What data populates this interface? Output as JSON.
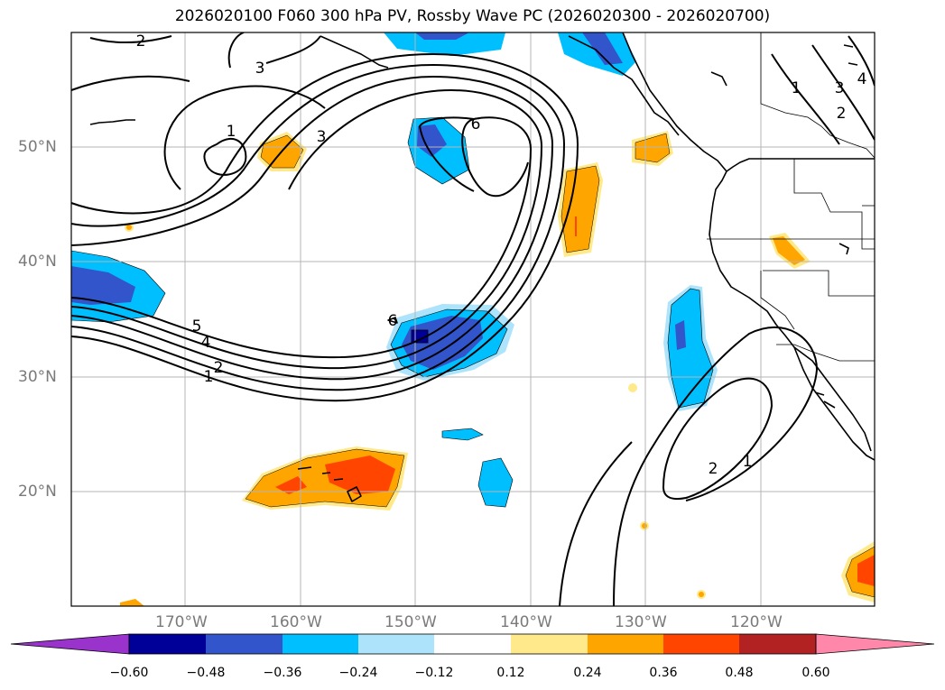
{
  "title": "2026020100 F060 300 hPa PV, Rossby Wave PC (2026020300 - 2026020700)",
  "lat_labels": [
    "50°N",
    "40°N",
    "30°N",
    "20°N"
  ],
  "lon_labels": [
    "170°W",
    "160°W",
    "150°W",
    "140°W",
    "130°W",
    "120°W"
  ],
  "contour_labels": [
    "1",
    "2",
    "3",
    "4",
    "5",
    "6"
  ],
  "colorbar": {
    "ticks": [
      "−0.60",
      "−0.48",
      "−0.36",
      "−0.24",
      "−0.12",
      "0.12",
      "0.24",
      "0.36",
      "0.48",
      "0.60"
    ],
    "colors": [
      "#9933cc",
      "#000099",
      "#3355cc",
      "#00bfff",
      "#aee4fb",
      "#ffffff",
      "#ffe98a",
      "#ffa500",
      "#ff4500",
      "#b22222",
      "#ff88aa"
    ]
  },
  "colors": {
    "neg_strong": "#000099",
    "neg_med": "#3355cc",
    "neg_light": "#00bfff",
    "neg_pale": "#aee4fb",
    "pos_pale": "#ffe98a",
    "pos_med": "#ffa500",
    "pos_strong": "#ff4500"
  }
}
